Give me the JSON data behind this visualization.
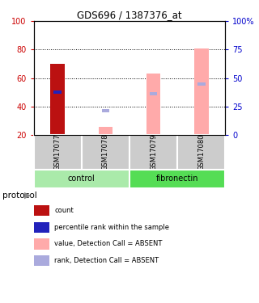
{
  "title": "GDS696 / 1387376_at",
  "samples": [
    "GSM17077",
    "GSM17078",
    "GSM17079",
    "GSM17080"
  ],
  "bar_bottom": 20,
  "red_bar_values": [
    70,
    null,
    null,
    null
  ],
  "blue_marker_values": [
    50,
    null,
    null,
    null
  ],
  "pink_bar_values": [
    null,
    26,
    63,
    81
  ],
  "lavender_marker_values": [
    null,
    37,
    49,
    56
  ],
  "ylim": [
    20,
    100
  ],
  "left_yticks": [
    20,
    40,
    60,
    80,
    100
  ],
  "right_yticks": [
    0,
    25,
    50,
    75,
    100
  ],
  "right_ylabels": [
    "0",
    "25",
    "50",
    "75",
    "100%"
  ],
  "left_color": "#cc0000",
  "right_color": "#0000cc",
  "bar_width": 0.3,
  "red_color": "#bb1111",
  "blue_color": "#2222bb",
  "pink_color": "#ffaaaa",
  "lavender_color": "#aaaadd",
  "groups": [
    {
      "label": "control",
      "samples": [
        0,
        1
      ],
      "color": "#aaeaaa"
    },
    {
      "label": "fibronectin",
      "samples": [
        2,
        3
      ],
      "color": "#55dd55"
    }
  ],
  "gray_label_bg": "#cccccc",
  "protocol_label": "protocol",
  "legend_items": [
    {
      "color": "#bb1111",
      "label": "count"
    },
    {
      "color": "#2222bb",
      "label": "percentile rank within the sample"
    },
    {
      "color": "#ffaaaa",
      "label": "value, Detection Call = ABSENT"
    },
    {
      "color": "#aaaadd",
      "label": "rank, Detection Call = ABSENT"
    }
  ]
}
